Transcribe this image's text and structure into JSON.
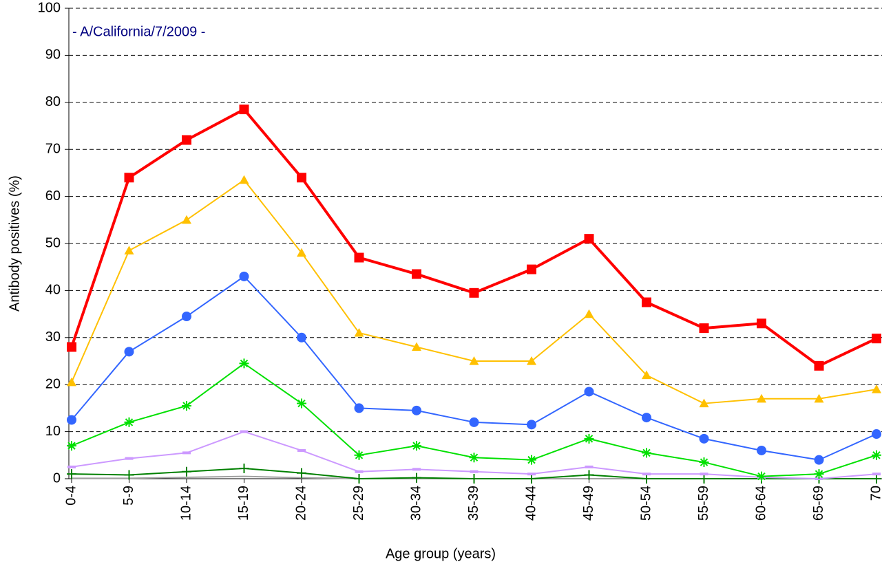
{
  "chart_data": {
    "type": "line",
    "annotation": "- A/California/7/2009 -",
    "annotation_color": "#000080",
    "xlabel": "Age group (years)",
    "ylabel": "Antibody positives (%)",
    "categories": [
      "0-4",
      "5-9",
      "10-14",
      "15-19",
      "20-24",
      "25-29",
      "30-34",
      "35-39",
      "40-44",
      "45-49",
      "50-54",
      "55-59",
      "60-64",
      "65-69",
      "70"
    ],
    "ylim": [
      0,
      100
    ],
    "yticks": [
      0,
      10,
      20,
      30,
      40,
      50,
      60,
      70,
      80,
      90,
      100
    ],
    "grid": true,
    "series": [
      {
        "color": "#ff0000",
        "marker": "square",
        "line_width": 4,
        "values": [
          28,
          64,
          72,
          78.5,
          64,
          47,
          43.5,
          39.5,
          44.5,
          51,
          37.5,
          32,
          33,
          24,
          29.8
        ]
      },
      {
        "color": "#ffc000",
        "marker": "triangle",
        "line_width": 2,
        "values": [
          20.5,
          48.5,
          55,
          63.5,
          48,
          31,
          28,
          25,
          25,
          35,
          22,
          16,
          17,
          17,
          19
        ]
      },
      {
        "color": "#3366ff",
        "marker": "circle",
        "line_width": 2,
        "values": [
          12.5,
          27,
          34.5,
          43,
          30,
          15,
          14.5,
          12,
          11.5,
          18.5,
          13,
          8.5,
          6,
          4,
          9.5
        ]
      },
      {
        "color": "#00e000",
        "marker": "star",
        "line_width": 2,
        "values": [
          7,
          12,
          15.5,
          24.5,
          16,
          5,
          7,
          4.5,
          4,
          8.5,
          5.5,
          3.5,
          0.5,
          1,
          5
        ]
      },
      {
        "color": "#cc99ff",
        "marker": "dash",
        "line_width": 2,
        "values": [
          2.5,
          4.3,
          5.5,
          10,
          6,
          1.5,
          2,
          1.5,
          1,
          2.5,
          1,
          1,
          0.3,
          0,
          1
        ]
      },
      {
        "color": "#008000",
        "marker": "plus",
        "line_width": 2,
        "values": [
          1,
          0.8,
          1.5,
          2.2,
          1.2,
          0,
          0.2,
          0,
          0,
          0.8,
          0,
          0,
          0,
          0,
          0
        ]
      },
      {
        "color": "#a0a0a0",
        "marker": "none",
        "line_width": 2,
        "values": [
          0.1,
          0.1,
          0.3,
          0.5,
          0.2,
          0,
          0,
          0,
          0,
          0,
          0,
          0,
          0,
          0,
          0
        ]
      }
    ]
  }
}
